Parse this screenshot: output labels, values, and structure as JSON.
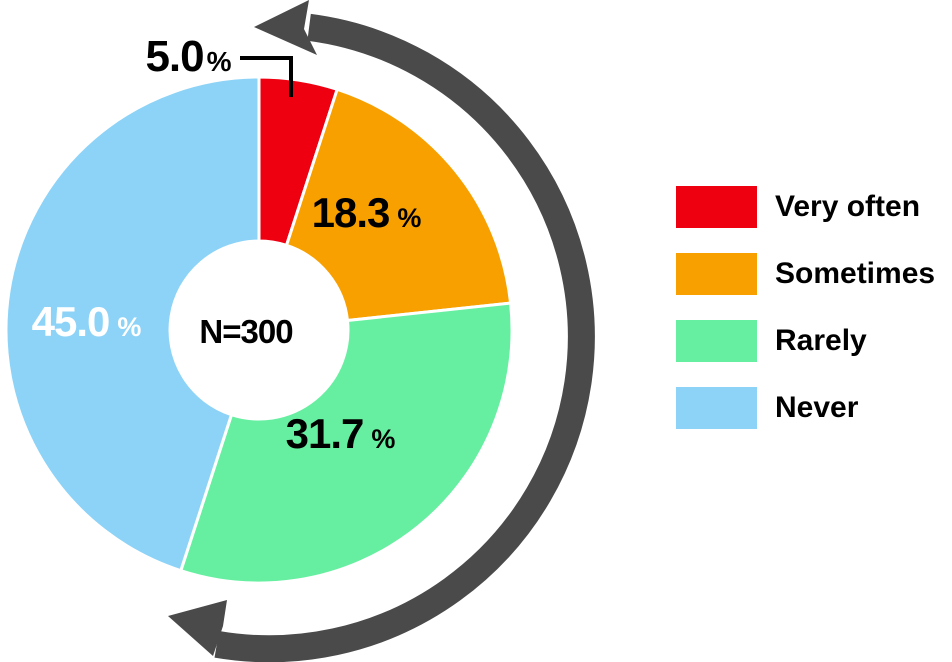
{
  "chart_data": {
    "type": "pie",
    "subtype": "donut",
    "title": "",
    "center_label": "N=300",
    "unit": "%",
    "direction": "clockwise",
    "start_angle_deg": 0,
    "categories": [
      "Very often",
      "Sometimes",
      "Rarely",
      "Never"
    ],
    "values": [
      5.0,
      18.3,
      31.7,
      45.0
    ],
    "value_labels": [
      "5.0",
      "18.3",
      "31.7",
      "45.0"
    ],
    "colors": [
      "#EE0011",
      "#F7A000",
      "#66EFA0",
      "#8CD3F7"
    ],
    "value_label_colors": [
      "#000000",
      "#000000",
      "#000000",
      "#FFFFFF"
    ],
    "legend_position": "right",
    "annotation_arrow_color": "#4A4A4A",
    "leader_line_color": "#000000"
  }
}
